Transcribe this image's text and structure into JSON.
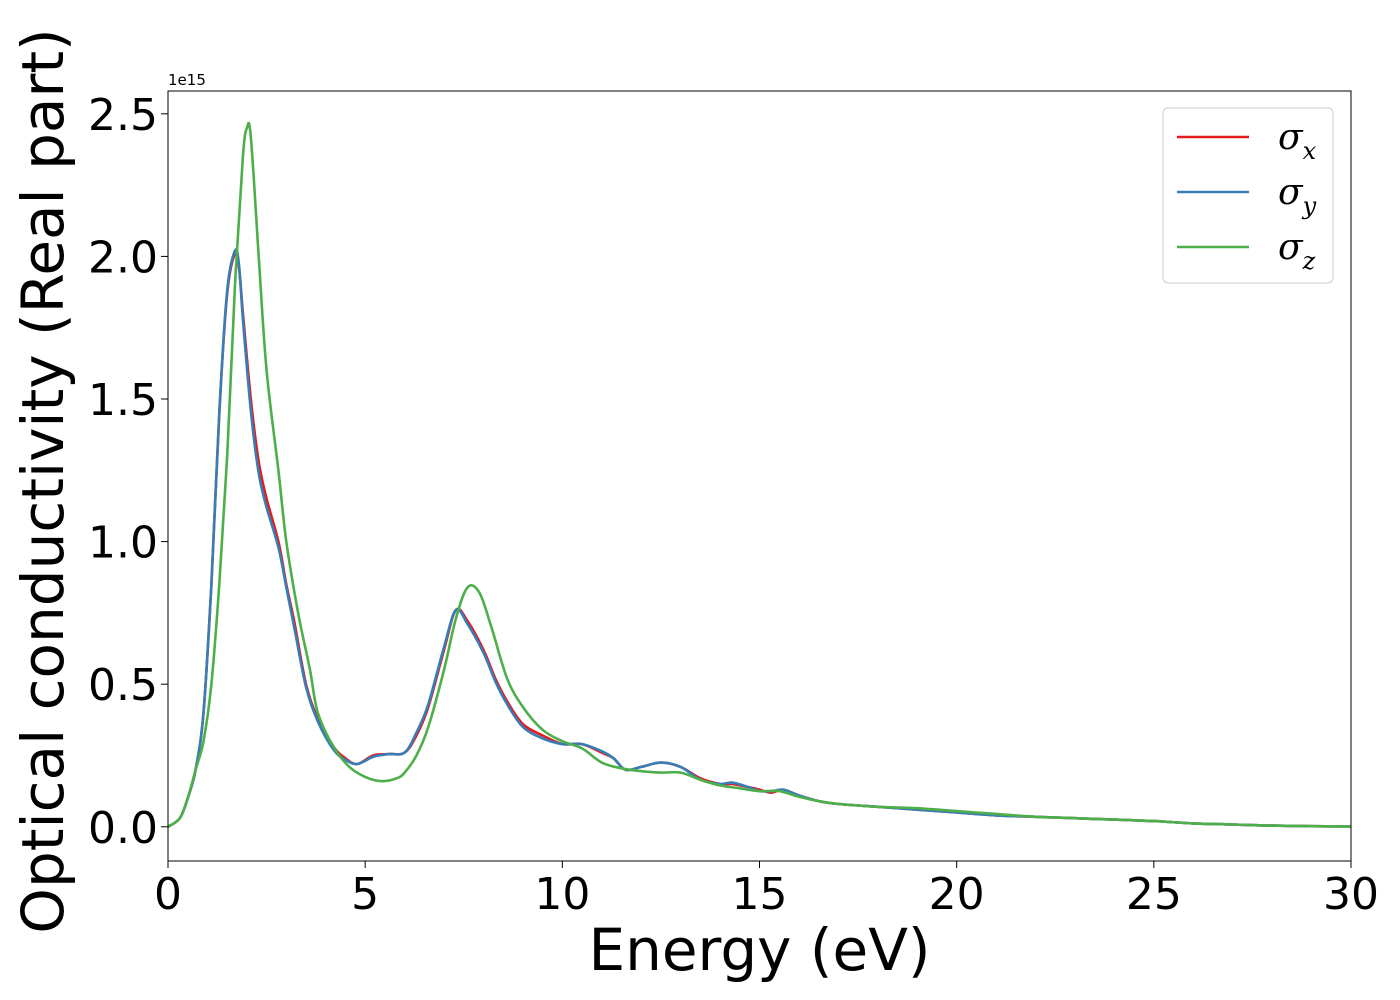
{
  "chart_data": {
    "type": "line",
    "title": "",
    "xlabel": "Energy (eV)",
    "ylabel": "Optical conductivity (Real part)",
    "y_offset_text": "1e15",
    "y_scale_factor": 1000000000000000.0,
    "xlim": [
      0,
      30
    ],
    "ylim": [
      -0.12,
      2.58
    ],
    "xticks": [
      0,
      5,
      10,
      15,
      20,
      25,
      30
    ],
    "xtick_labels": [
      "0",
      "5",
      "10",
      "15",
      "20",
      "25",
      "30"
    ],
    "yticks": [
      0.0,
      0.5,
      1.0,
      1.5,
      2.0,
      2.5
    ],
    "ytick_labels": [
      "0.0",
      "0.5",
      "1.0",
      "1.5",
      "2.0",
      "2.5"
    ],
    "grid": false,
    "legend_position": "top-right",
    "series": [
      {
        "name": "σx",
        "legend_symbol": "σ",
        "legend_subscript": "x",
        "color": "#e41a1c",
        "x": [
          0,
          0.3,
          0.5,
          0.7,
          0.9,
          1.1,
          1.3,
          1.5,
          1.7,
          1.8,
          1.9,
          2.1,
          2.3,
          2.5,
          2.8,
          3.0,
          3.2,
          3.5,
          3.8,
          4.2,
          4.5,
          4.8,
          5.2,
          5.6,
          6.0,
          6.3,
          6.6,
          7.0,
          7.3,
          7.6,
          8.0,
          8.3,
          8.6,
          9.0,
          9.5,
          10.0,
          10.5,
          11.0,
          11.3,
          11.6,
          12.0,
          12.5,
          13.0,
          13.5,
          14.0,
          14.3,
          14.7,
          15.0,
          15.3,
          15.6,
          16.0,
          16.5,
          17.0,
          18.0,
          19.0,
          20.0,
          21.0,
          22.0,
          23.0,
          24.0,
          25.0,
          26.0,
          27.0,
          28.0,
          29.0,
          30.0
        ],
        "values": [
          0.0,
          0.03,
          0.1,
          0.2,
          0.4,
          0.85,
          1.45,
          1.87,
          2.01,
          1.96,
          1.8,
          1.5,
          1.28,
          1.15,
          1.0,
          0.85,
          0.72,
          0.5,
          0.38,
          0.28,
          0.24,
          0.22,
          0.25,
          0.255,
          0.26,
          0.32,
          0.42,
          0.62,
          0.76,
          0.72,
          0.62,
          0.52,
          0.44,
          0.36,
          0.32,
          0.29,
          0.29,
          0.26,
          0.24,
          0.2,
          0.21,
          0.225,
          0.21,
          0.17,
          0.15,
          0.15,
          0.14,
          0.13,
          0.12,
          0.13,
          0.11,
          0.09,
          0.08,
          0.07,
          0.06,
          0.05,
          0.04,
          0.035,
          0.03,
          0.025,
          0.02,
          0.012,
          0.008,
          0.004,
          0.002,
          0.001
        ]
      },
      {
        "name": "σy",
        "legend_symbol": "σ",
        "legend_subscript": "y",
        "color": "#377eb8",
        "x": [
          0,
          0.3,
          0.5,
          0.7,
          0.9,
          1.1,
          1.3,
          1.5,
          1.7,
          1.8,
          1.9,
          2.1,
          2.3,
          2.5,
          2.8,
          3.0,
          3.2,
          3.5,
          3.8,
          4.2,
          4.5,
          4.8,
          5.2,
          5.6,
          6.0,
          6.3,
          6.6,
          7.0,
          7.3,
          7.6,
          8.0,
          8.3,
          8.6,
          9.0,
          9.5,
          10.0,
          10.5,
          11.0,
          11.3,
          11.6,
          12.0,
          12.5,
          13.0,
          13.5,
          14.0,
          14.3,
          14.7,
          15.0,
          15.3,
          15.6,
          16.0,
          16.5,
          17.0,
          18.0,
          19.0,
          20.0,
          21.0,
          22.0,
          23.0,
          24.0,
          25.0,
          26.0,
          27.0,
          28.0,
          29.0,
          30.0
        ],
        "values": [
          0.0,
          0.03,
          0.1,
          0.2,
          0.4,
          0.85,
          1.45,
          1.88,
          2.02,
          1.97,
          1.78,
          1.46,
          1.24,
          1.12,
          0.98,
          0.84,
          0.7,
          0.49,
          0.37,
          0.27,
          0.235,
          0.22,
          0.245,
          0.255,
          0.26,
          0.33,
          0.43,
          0.63,
          0.76,
          0.71,
          0.61,
          0.51,
          0.43,
          0.35,
          0.31,
          0.29,
          0.29,
          0.265,
          0.24,
          0.2,
          0.21,
          0.225,
          0.21,
          0.165,
          0.15,
          0.155,
          0.14,
          0.125,
          0.125,
          0.13,
          0.11,
          0.09,
          0.08,
          0.07,
          0.06,
          0.05,
          0.04,
          0.035,
          0.03,
          0.025,
          0.02,
          0.012,
          0.008,
          0.004,
          0.002,
          0.001
        ]
      },
      {
        "name": "σz",
        "legend_symbol": "σ",
        "legend_subscript": "z",
        "color": "#4daf4a",
        "x": [
          0,
          0.3,
          0.5,
          0.7,
          0.9,
          1.1,
          1.3,
          1.5,
          1.7,
          1.9,
          2.0,
          2.1,
          2.3,
          2.5,
          2.8,
          3.0,
          3.3,
          3.6,
          3.8,
          4.2,
          4.6,
          5.0,
          5.4,
          5.8,
          6.0,
          6.3,
          6.6,
          7.0,
          7.3,
          7.6,
          7.9,
          8.2,
          8.6,
          9.0,
          9.5,
          10.0,
          10.5,
          11.0,
          11.5,
          12.0,
          12.5,
          13.0,
          13.5,
          14.0,
          14.5,
          15.0,
          15.5,
          16.0,
          16.5,
          17.0,
          18.0,
          19.0,
          20.0,
          21.0,
          22.0,
          23.0,
          24.0,
          25.0,
          26.0,
          27.0,
          28.0,
          29.0,
          30.0
        ],
        "values": [
          0.0,
          0.03,
          0.1,
          0.2,
          0.3,
          0.5,
          0.85,
          1.3,
          1.9,
          2.35,
          2.45,
          2.42,
          2.0,
          1.6,
          1.25,
          1.0,
          0.75,
          0.55,
          0.4,
          0.28,
          0.21,
          0.175,
          0.16,
          0.17,
          0.19,
          0.25,
          0.35,
          0.55,
          0.73,
          0.84,
          0.82,
          0.7,
          0.52,
          0.42,
          0.34,
          0.3,
          0.275,
          0.225,
          0.205,
          0.195,
          0.19,
          0.19,
          0.165,
          0.145,
          0.135,
          0.125,
          0.125,
          0.105,
          0.09,
          0.08,
          0.07,
          0.065,
          0.055,
          0.045,
          0.035,
          0.03,
          0.025,
          0.02,
          0.012,
          0.008,
          0.004,
          0.002,
          0.001
        ]
      }
    ]
  }
}
